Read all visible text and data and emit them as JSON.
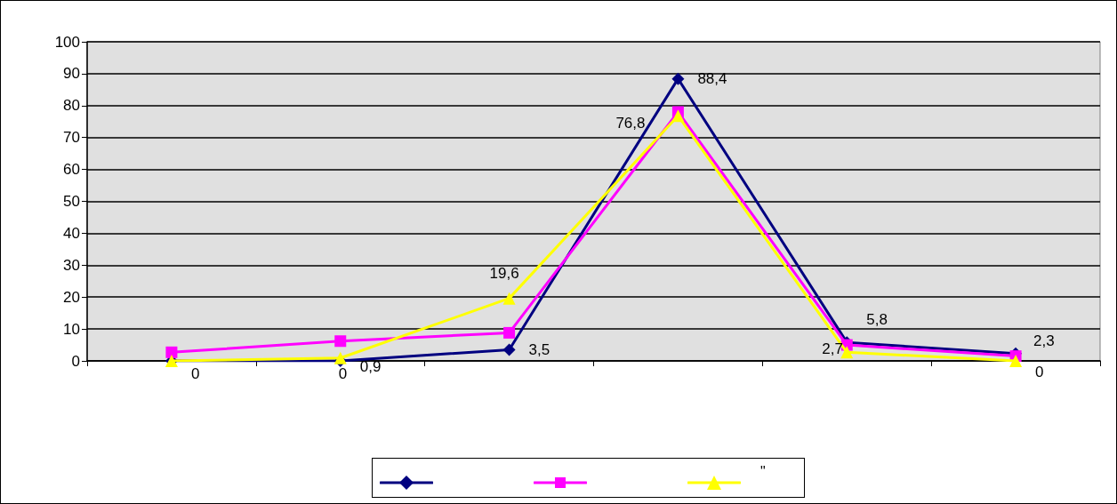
{
  "chart_data": {
    "type": "line",
    "categories": [
      null,
      null,
      null,
      null,
      null,
      null
    ],
    "series": [
      {
        "color": "#000080",
        "marker": "diamond",
        "values": [
          0,
          0,
          3.5,
          88.4,
          5.8,
          2.3
        ],
        "value_labels": [
          "0",
          "0",
          "3,5",
          "88,4",
          "5,8",
          "2,3"
        ]
      },
      {
        "color": "#ff00ff",
        "marker": "square",
        "values": [
          2.7,
          6.2,
          8.8,
          78,
          5,
          1.5
        ]
      },
      {
        "name": "\"",
        "color": "#ffff00",
        "marker": "triangle",
        "values": [
          0,
          0.9,
          19.6,
          76.8,
          2.7,
          0
        ],
        "value_labels": [
          null,
          "0,9",
          "19,6",
          "76,8",
          "2,7",
          "0"
        ]
      }
    ],
    "ylim": [
      0,
      100
    ],
    "yticks": [
      0,
      10,
      20,
      30,
      40,
      50,
      60,
      70,
      80,
      90,
      100
    ],
    "grid": "y",
    "legend": "bottom",
    "line_style": "solid"
  }
}
